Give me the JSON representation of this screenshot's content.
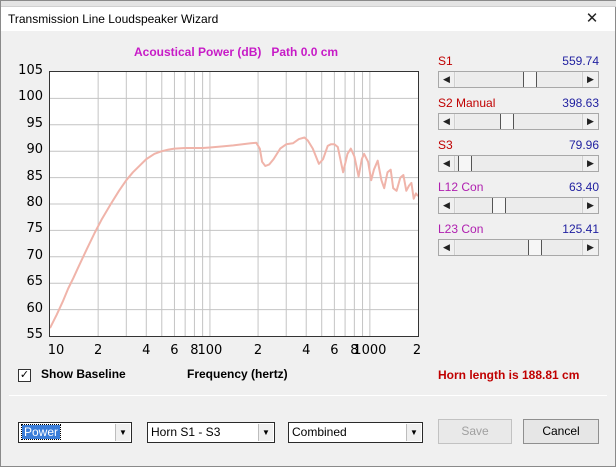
{
  "window": {
    "title": "Transmission Line Loudspeaker Wizard",
    "close_glyph": "✕"
  },
  "chart_data": {
    "type": "line",
    "title": "Acoustical Power (dB)   Path 0.0 cm",
    "xlabel": "Frequency (hertz)",
    "ylabel": "",
    "xscale": "log",
    "xlim": [
      10,
      2000
    ],
    "ylim": [
      55,
      105
    ],
    "grid": true,
    "line_color": "#f0b4aa",
    "yticks": [
      105,
      100,
      95,
      90,
      85,
      80,
      75,
      70,
      65,
      60,
      55
    ],
    "xtick_labels": [
      {
        "value": 10,
        "label": "10"
      },
      {
        "value": 20,
        "label": "2"
      },
      {
        "value": 40,
        "label": "4"
      },
      {
        "value": 60,
        "label": "6"
      },
      {
        "value": 80,
        "label": "8"
      },
      {
        "value": 100,
        "label": "100"
      },
      {
        "value": 200,
        "label": "2"
      },
      {
        "value": 400,
        "label": "4"
      },
      {
        "value": 600,
        "label": "6"
      },
      {
        "value": 800,
        "label": "8"
      },
      {
        "value": 1000,
        "label": "1000"
      },
      {
        "value": 2000,
        "label": "2"
      }
    ],
    "series": [
      {
        "x": [
          10,
          11,
          12,
          13,
          14,
          15,
          17,
          19,
          21,
          24,
          27,
          30,
          33,
          37,
          40,
          45,
          50,
          55,
          60,
          70,
          80,
          90,
          100,
          120,
          140,
          160,
          180,
          195,
          205,
          212,
          222,
          235,
          250,
          275,
          300,
          330,
          360,
          390,
          410,
          440,
          480,
          510,
          545,
          570,
          600,
          630,
          680,
          725,
          760,
          800,
          850,
          890,
          920,
          975,
          1020,
          1060,
          1120,
          1180,
          1230,
          1290,
          1350,
          1400,
          1470,
          1550,
          1620,
          1690,
          1760,
          1820,
          1880,
          1940,
          2000
        ],
        "y": [
          56.5,
          59,
          61.5,
          64,
          66,
          68,
          71.5,
          74.5,
          77,
          80,
          82.5,
          84.5,
          86,
          87.5,
          88.5,
          89.5,
          90,
          90.3,
          90.5,
          90.6,
          90.6,
          90.6,
          90.7,
          90.9,
          91.1,
          91.3,
          91.5,
          91.6,
          90.5,
          88,
          87.2,
          87.5,
          88.5,
          90.5,
          91.3,
          91.5,
          92.3,
          92.6,
          92,
          90.5,
          87.6,
          88.5,
          91,
          91.3,
          91.3,
          90.8,
          86,
          89.5,
          90.5,
          89,
          85.2,
          88.5,
          89.5,
          88,
          84.5,
          86.5,
          88.2,
          84.5,
          83,
          86,
          86.5,
          83,
          82.5,
          85,
          85.5,
          82.5,
          83.5,
          84,
          81,
          82,
          81.5
        ]
      }
    ]
  },
  "sliders": [
    {
      "name": "S1",
      "value": "559.74",
      "color": "#c00000",
      "pos": 0.6
    },
    {
      "name": "S2  Manual",
      "value": "398.63",
      "color": "#c00000",
      "pos": 0.4
    },
    {
      "name": "S3",
      "value": "79.96",
      "color": "#c00000",
      "pos": 0.02
    },
    {
      "name": "L12  Con",
      "value": "63.40",
      "color": "#b020b0",
      "pos": 0.32
    },
    {
      "name": "L23  Con",
      "value": "125.41",
      "color": "#b020b0",
      "pos": 0.65
    }
  ],
  "show_baseline": {
    "label": "Show Baseline",
    "checked": true,
    "check_glyph": "✓"
  },
  "horn_length": "Horn length is 188.81 cm",
  "combos": {
    "mode": "Power",
    "section": "Horn S1 - S3",
    "view": "Combined"
  },
  "buttons": {
    "save": "Save",
    "cancel": "Cancel"
  },
  "dropdown_glyph": "▼",
  "arrow_left": "◀",
  "arrow_right": "▶"
}
